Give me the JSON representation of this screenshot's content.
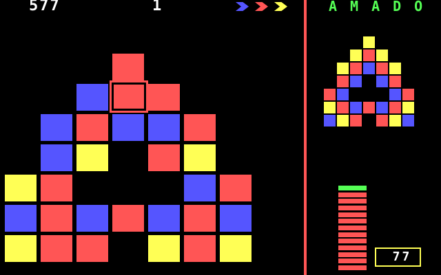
{
  "colors": {
    "R": "#FF5555",
    "B": "#5555FF",
    "Y": "#FFFF55",
    "G": "#55FF55",
    "white": "#FFFFFF",
    "divider": "#FF5555",
    "background": "#000000"
  },
  "header": {
    "score": "577",
    "level": "1",
    "arrows": [
      {
        "name": "arrow-blue-icon",
        "color": "#5555FF"
      },
      {
        "name": "arrow-red-icon",
        "color": "#FF5555"
      },
      {
        "name": "arrow-yellow-icon",
        "color": "#FFFF55"
      }
    ]
  },
  "title": {
    "text": "AMADO",
    "color": "#55FF55"
  },
  "board": {
    "rows": [
      "...R...",
      "..BRR..",
      ".BRBBR.",
      ".BY.RY.",
      "YR...BR",
      "BRBRBRB",
      "YRR.YRY"
    ],
    "cursor": {
      "row": 1,
      "col": 3,
      "color": "R"
    }
  },
  "target": {
    "rows": [
      "...Y...",
      "..YRY..",
      ".YRBRY.",
      ".RB.BR.",
      "RB...BR",
      "YRBRBRY",
      "BYR.RYB"
    ]
  },
  "progress": {
    "green_bars": 1,
    "red_bars": 12,
    "green_color": "#55FF55",
    "red_color": "#FF5555"
  },
  "counter": {
    "value": "77"
  }
}
